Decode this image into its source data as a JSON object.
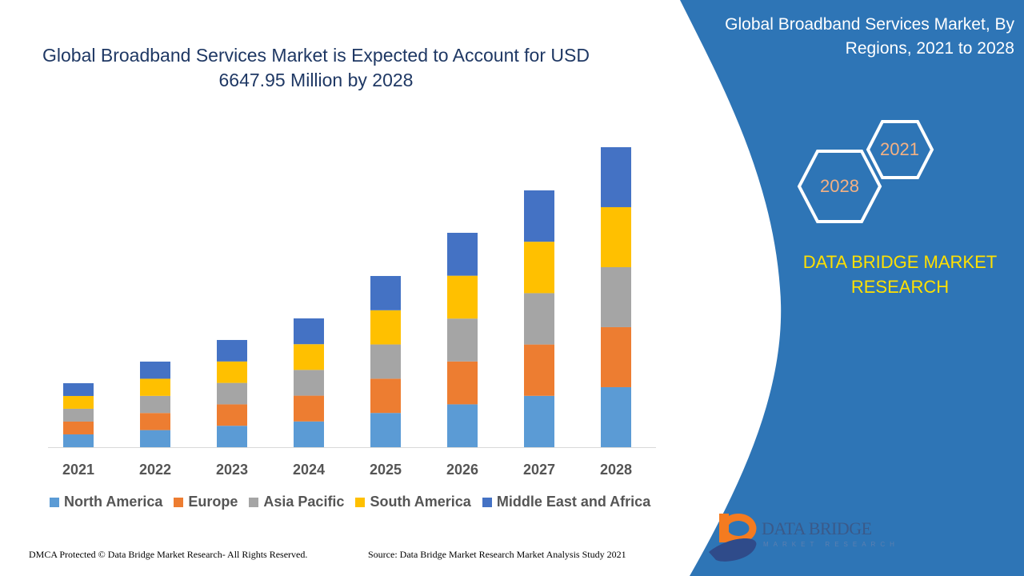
{
  "title": "Global Broadband Services Market is Expected to Account for USD 6647.95 Million by 2028",
  "side_panel": {
    "title": "Global Broadband Services Market, By Regions, 2021 to 2028",
    "hex_year_top": "2021",
    "hex_year_bottom": "2028",
    "brand": "DATA BRIDGE MARKET RESEARCH",
    "logo_text": "DATA BRIDGE",
    "logo_subtext": "MARKET RESEARCH",
    "panel_color": "#2E75B6"
  },
  "footer": {
    "left": "DMCA Protected © Data Bridge Market Research- All Rights Reserved.",
    "right": "Source: Data Bridge Market Research Market Analysis Study 2021"
  },
  "chart_data": {
    "type": "bar",
    "stacked": true,
    "title": "Global Broadband Services Market is Expected to Account for USD 6647.95 Million by 2028",
    "categories": [
      "2021",
      "2022",
      "2023",
      "2024",
      "2025",
      "2026",
      "2027",
      "2028"
    ],
    "series": [
      {
        "name": "North America",
        "color": "#5B9BD5",
        "values": [
          284,
          379,
          475,
          571,
          759,
          950,
          1138,
          1330
        ]
      },
      {
        "name": "Europe",
        "color": "#ED7D31",
        "values": [
          284,
          379,
          475,
          571,
          759,
          950,
          1138,
          1330
        ]
      },
      {
        "name": "Asia Pacific",
        "color": "#A5A5A5",
        "values": [
          284,
          379,
          475,
          571,
          759,
          950,
          1138,
          1329
        ]
      },
      {
        "name": "South America",
        "color": "#FFC000",
        "values": [
          283,
          380,
          475,
          570,
          758,
          950,
          1139,
          1330
        ]
      },
      {
        "name": "Middle East and Africa",
        "color": "#4472C4",
        "values": [
          283,
          380,
          476,
          571,
          759,
          951,
          1138,
          1329
        ]
      }
    ],
    "ylim": [
      0,
      6648
    ],
    "grid": false,
    "y_axis_shown": false,
    "legend_position": "bottom"
  }
}
